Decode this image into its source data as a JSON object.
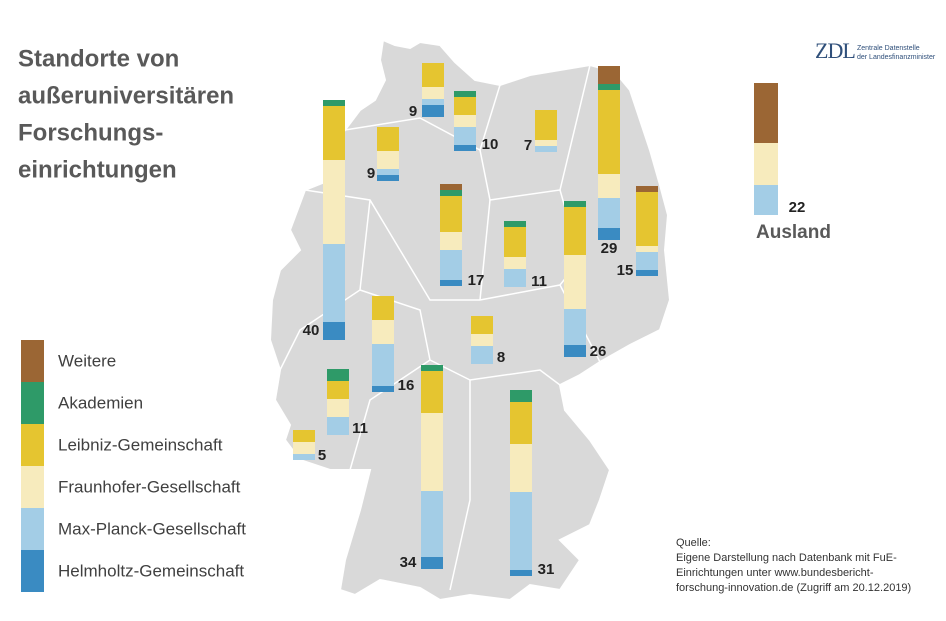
{
  "chart_data": {
    "type": "stacked_bar_map",
    "title_lines": [
      "Standorte von",
      "außeruniversitären",
      "Forschungs-",
      "einrichtungen"
    ],
    "categories": [
      null,
      null,
      null,
      null,
      null,
      null,
      null,
      null,
      null,
      null,
      null,
      null,
      null,
      null,
      null,
      null,
      "Ausland"
    ],
    "totals": [
      9,
      10,
      7,
      9,
      17,
      29,
      15,
      40,
      11,
      26,
      8,
      16,
      11,
      5,
      34,
      31,
      22
    ],
    "series": [
      {
        "name": "Helmholtz-Gemeinschaft",
        "color": "#3a8bc2",
        "values": [
          2,
          1,
          0,
          1,
          1,
          2,
          1,
          3,
          0,
          2,
          0,
          1,
          0,
          0,
          2,
          1,
          0
        ]
      },
      {
        "name": "Max-Planck-Gesellschaft",
        "color": "#a3cde6",
        "values": [
          1,
          3,
          1,
          1,
          5,
          5,
          3,
          13,
          3,
          6,
          3,
          7,
          3,
          1,
          11,
          13,
          5
        ]
      },
      {
        "name": "Fraunhofer-Gesellschaft",
        "color": "#f7ebbd",
        "values": [
          2,
          2,
          1,
          3,
          3,
          4,
          1,
          14,
          2,
          9,
          2,
          4,
          3,
          2,
          13,
          8,
          7
        ]
      },
      {
        "name": "Leibniz-Gemeinschaft",
        "color": "#e5c530",
        "values": [
          4,
          3,
          5,
          4,
          6,
          14,
          9,
          9,
          5,
          8,
          3,
          4,
          3,
          2,
          7,
          7,
          0
        ]
      },
      {
        "name": "Akademien",
        "color": "#2e9a68",
        "values": [
          0,
          1,
          0,
          0,
          1,
          1,
          0,
          1,
          1,
          1,
          0,
          0,
          2,
          0,
          1,
          2,
          0
        ]
      },
      {
        "name": "Weitere",
        "color": "#9b6634",
        "values": [
          0,
          0,
          0,
          0,
          1,
          3,
          1,
          0,
          0,
          0,
          0,
          0,
          0,
          0,
          0,
          0,
          10
        ]
      }
    ],
    "source_lines": [
      "Quelle:",
      "Eigene Darstellung nach Datenbank mit FuE-",
      "Einrichtungen unter www.bundesbericht-",
      "forschung-innovation.de (Zugriff am 20.12.2019)"
    ],
    "logo": {
      "mark": "ZDL",
      "lines": [
        "Zentrale Datenstelle",
        "der Landesfinanzminister"
      ]
    }
  }
}
